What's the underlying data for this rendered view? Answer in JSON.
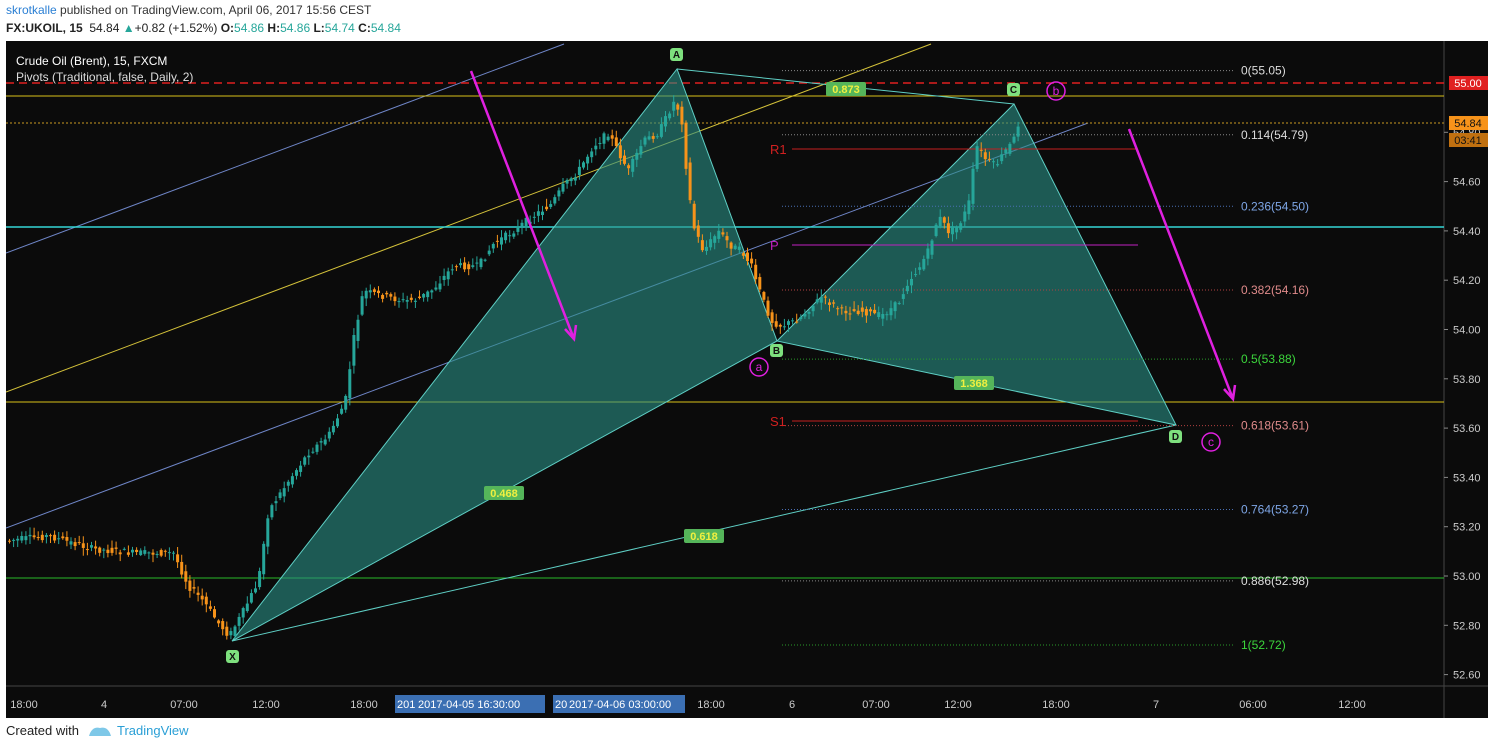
{
  "header": {
    "user": "skrotkalle",
    "published": " published on TradingView.com, April 06, 2017 15:56 CEST",
    "symbol": "FX:UKOIL, 15",
    "last": "54.84",
    "change": "+0.82 (+1.52%)",
    "o_label": "O:",
    "o": "54.86",
    "h_label": "H:",
    "h": "54.86",
    "l_label": "L:",
    "l": "54.74",
    "c_label": "C:",
    "c": "54.84"
  },
  "legend": {
    "title": "Crude Oil (Brent), 15, FXCM",
    "indicator": "Pivots (Traditional, false, Daily, 2)"
  },
  "price_axis": {
    "ticks": [
      "55.00",
      "54.80",
      "54.60",
      "54.40",
      "54.20",
      "54.00",
      "53.80",
      "53.60",
      "53.40",
      "53.20",
      "53.00",
      "52.80",
      "52.60"
    ],
    "current_price": "54.84",
    "countdown": "03:41",
    "line_55_label": "55.00"
  },
  "time_axis": {
    "ticks": [
      "18:00",
      "4",
      "07:00",
      "12:00",
      "18:00",
      "18:00",
      "6",
      "07:00",
      "12:00",
      "18:00",
      "7",
      "06:00",
      "12:00"
    ],
    "highlight_1": "2017-04-05 16:30:00",
    "highlight_1_prefix": "201",
    "highlight_2": "2017-04-06 03:00:00",
    "highlight_2_prefix": "20"
  },
  "fib_levels": [
    "0(55.05)",
    "0.114(54.79)",
    "0.236(54.50)",
    "0.382(54.16)",
    "0.5(53.88)",
    "0.618(53.61)",
    "0.764(53.27)",
    "0.886(52.98)",
    "1(52.72)"
  ],
  "pattern": {
    "points": [
      "X",
      "A",
      "B",
      "C",
      "D"
    ],
    "ratios": [
      "0.873",
      "0.468",
      "1.368",
      "0.618"
    ],
    "waves": [
      "a",
      "b",
      "c"
    ]
  },
  "pivots": {
    "r1": "R1",
    "p": "P",
    "s1": "S1"
  },
  "footer": {
    "created": "Created with",
    "brand": "TradingView"
  },
  "colors": {
    "background": "#0b0b0b",
    "bull": "#26a69a",
    "bear": "#f7931a",
    "pattern_fill": "#2a8f86",
    "arrow": "#e020e0",
    "fib_gold": "#e6c200",
    "resistance": "#e02020"
  },
  "chart_data": {
    "type": "candlestick",
    "title": "Crude Oil (Brent), 15, FXCM",
    "ylim": [
      52.56,
      55.12
    ],
    "current": 54.84,
    "harmonic_points": [
      {
        "label": "X",
        "price": 52.72
      },
      {
        "label": "A",
        "price": 55.05
      },
      {
        "label": "B",
        "price": 53.95
      },
      {
        "label": "C",
        "price": 54.9
      },
      {
        "label": "D",
        "price": 53.61
      }
    ],
    "horizontal_levels": [
      55.0,
      54.96,
      54.42,
      53.71,
      52.99
    ]
  }
}
